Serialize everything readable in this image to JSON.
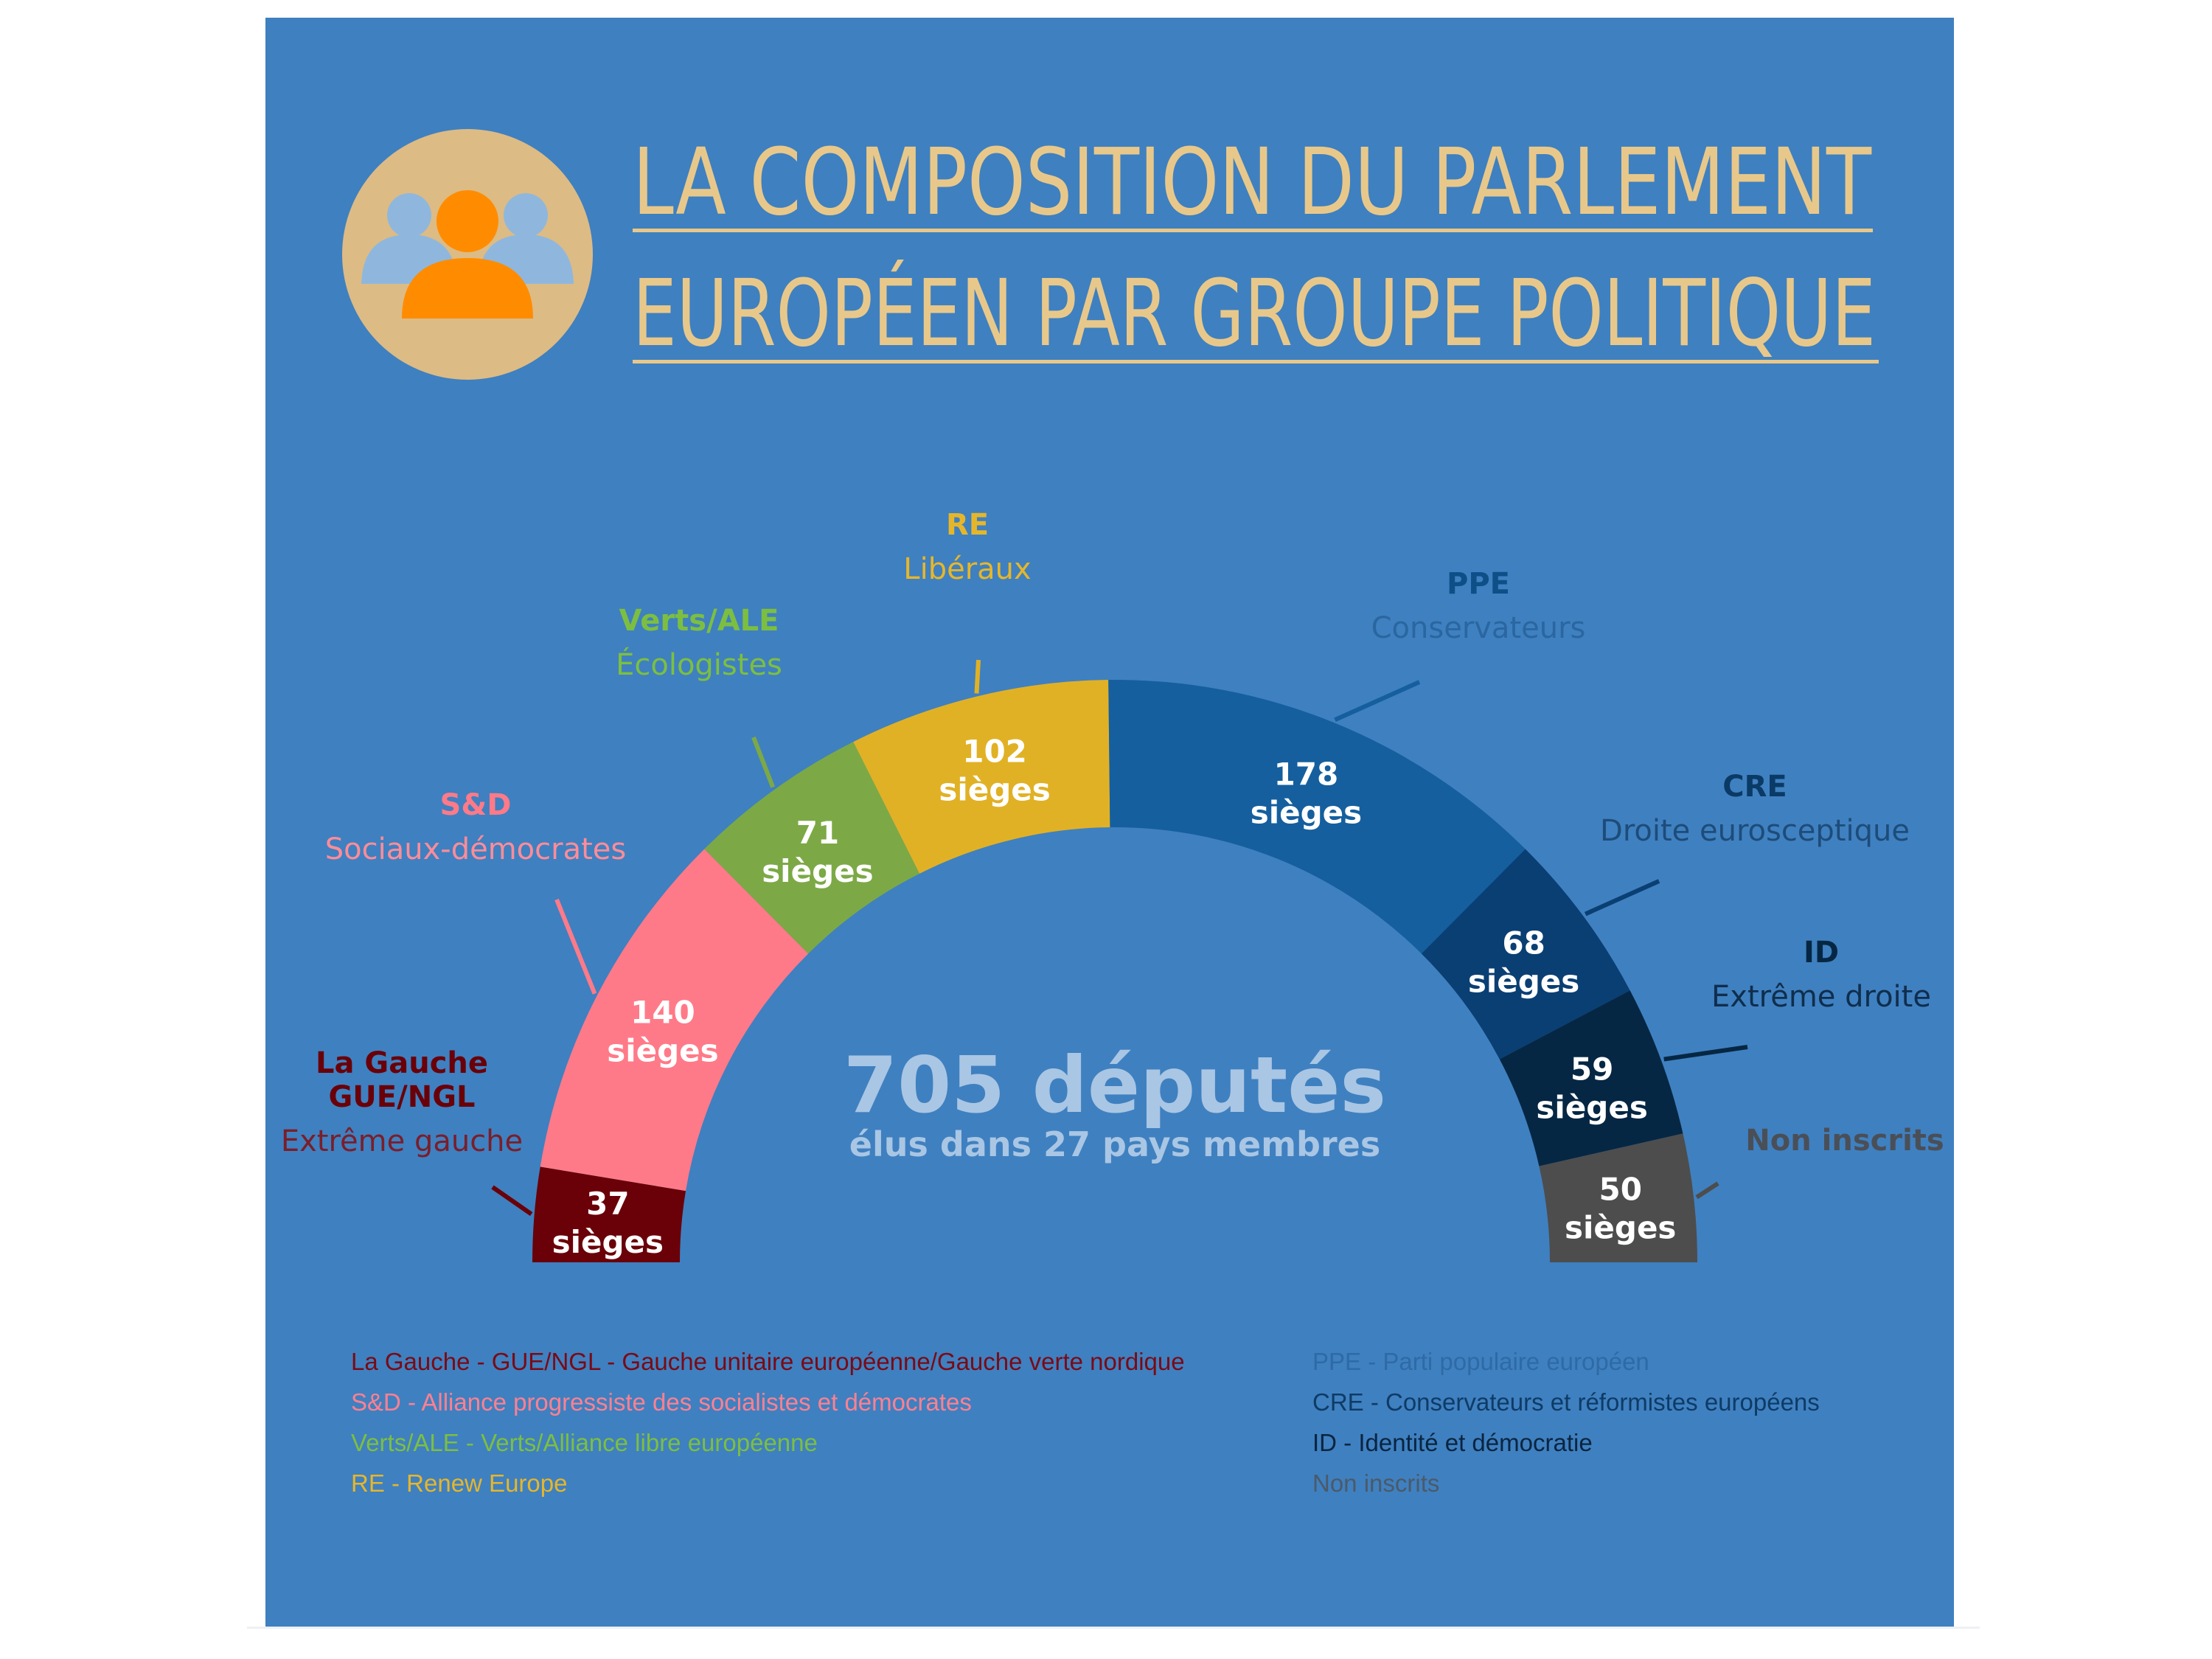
{
  "title": {
    "line1": "LA COMPOSITION DU PARLEMENT",
    "line2": "EUROPÉEN PAR GROUPE POLITIQUE",
    "icon": "people-group-icon"
  },
  "colors": {
    "background": "#3f80c0",
    "title": "#e8c88a",
    "icon_circle": "#ddbb84"
  },
  "center": {
    "total": "705 députés",
    "subtitle": "élus dans 27 pays membres"
  },
  "chart_data": {
    "type": "pie",
    "subtype": "half-donut (parliament)",
    "total": 705,
    "unit": "sièges",
    "segments": [
      {
        "abbr": "La Gauche GUE/NGL",
        "label_lines": [
          "La Gauche",
          "GUE/NGL"
        ],
        "desc": "Extrême gauche",
        "value": 37,
        "color": "#6a0008",
        "label_color": "#6a0008",
        "desc_color": "#7a1e2a"
      },
      {
        "abbr": "S&D",
        "label_lines": [
          "S&D"
        ],
        "desc": "Sociaux-démocrates",
        "value": 140,
        "color": "#ff7a88",
        "label_color": "#ff7a88",
        "desc_color": "#ff8c98"
      },
      {
        "abbr": "Verts/ALE",
        "label_lines": [
          "Verts/ALE"
        ],
        "desc": "Écologistes",
        "value": 71,
        "color": "#7ca946",
        "label_color": "#7cbf40",
        "desc_color": "#7cbf40"
      },
      {
        "abbr": "RE",
        "label_lines": [
          "RE"
        ],
        "desc": "Libéraux",
        "value": 102,
        "color": "#e1b125",
        "label_color": "#e6b62a",
        "desc_color": "#e6b62a"
      },
      {
        "abbr": "PPE",
        "label_lines": [
          "PPE"
        ],
        "desc": "Conservateurs",
        "value": 178,
        "color": "#155f9e",
        "label_color": "#0d4f86",
        "desc_color": "#2a66a0"
      },
      {
        "abbr": "CRE",
        "label_lines": [
          "CRE"
        ],
        "desc": "Droite eurosceptique",
        "value": 68,
        "color": "#0a3f73",
        "label_color": "#0a3a66",
        "desc_color": "#1d4c7a"
      },
      {
        "abbr": "ID",
        "label_lines": [
          "ID"
        ],
        "desc": "Extrême droite",
        "value": 59,
        "color": "#062743",
        "label_color": "#062743",
        "desc_color": "#0f2e4d"
      },
      {
        "abbr": "Non inscrits",
        "label_lines": [
          "Non inscrits"
        ],
        "desc": "",
        "value": 50,
        "color": "#4d4d4d",
        "label_color": "#4a4f57",
        "desc_color": "#4a4f57"
      }
    ],
    "value_label_lines": [
      [
        "37",
        "sièges"
      ],
      [
        "140",
        "sièges"
      ],
      [
        "71",
        "sièges"
      ],
      [
        "102",
        "sièges"
      ],
      [
        "178",
        "sièges"
      ],
      [
        "68",
        "sièges"
      ],
      [
        "59",
        "sièges"
      ],
      [
        "50",
        "sièges"
      ]
    ]
  },
  "legend": {
    "left": [
      {
        "text": "La Gauche - GUE/NGL - Gauche unitaire européenne/Gauche verte nordique",
        "color": "#7a0a14"
      },
      {
        "text": "S&D - Alliance progressiste des socialistes et démocrates",
        "color": "#ff8090"
      },
      {
        "text": "Verts/ALE - Verts/Alliance libre européenne",
        "color": "#7cbf40"
      },
      {
        "text": "RE - Renew Europe",
        "color": "#e6b62a"
      }
    ],
    "right": [
      {
        "text": "PPE - Parti populaire européen",
        "color": "#2e6aa6"
      },
      {
        "text": "CRE - Conservateurs et réformistes européens",
        "color": "#0e3b66"
      },
      {
        "text": "ID -  Identité et démocratie",
        "color": "#0a2540"
      },
      {
        "text": "Non inscrits",
        "color": "#4a5a6a"
      }
    ]
  }
}
